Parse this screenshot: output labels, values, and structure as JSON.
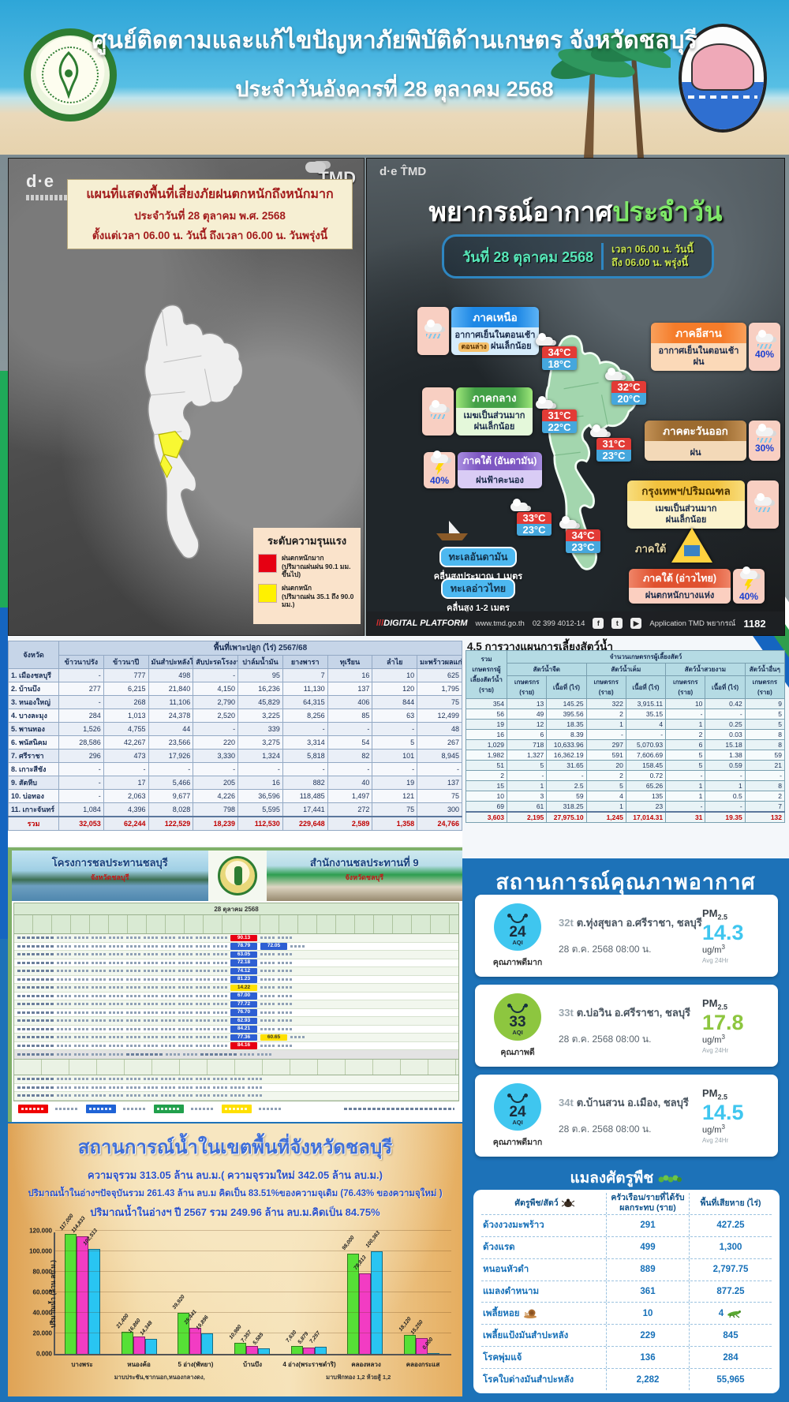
{
  "header": {
    "title_line1": "ศูนย์ติดตามและแก้ไขปัญหาภัยพิบัติด้านเกษตร จังหวัดชลบุรี",
    "title_line2": "ประจำวันอังคารที่ 28 ตุลาคม 2568"
  },
  "rain_map": {
    "box_line1": "แผนที่แสดงพื้นที่เสี่ยงภัยฝนตกหนักถึงหนักมาก",
    "box_line2": "ประจำวันที่ 28 ตุลาคม พ.ศ. 2568",
    "box_line3": "ตั้งแต่เวลา 06.00 น. วันนี้ ถึงเวลา 06.00 น. วันพรุ่งนี้",
    "tmd_logo": "TMD",
    "de_logo": "d·e",
    "legend_title": "ระดับความรุนแรง",
    "legend": [
      {
        "label": "ฝนตกหนักมาก",
        "detail": "(ปริมาณฝนฝน 90.1 มม. ขึ้นไป)",
        "color": "#e60012"
      },
      {
        "label": "ฝนตกหนัก",
        "detail": "(ปริมาณฝน 35.1 ถึง 90.0 มม.)",
        "color": "#fff100"
      }
    ]
  },
  "forecast": {
    "title_white": "พยากรณ์อากาศ",
    "title_green": "ประจำวัน",
    "date": "วันที่ 28 ตุลาคม 2568",
    "time_line1": "เวลา 06.00 น. วันนี้",
    "time_line2": "ถึง 06.00 น. พรุ่งนี้",
    "regions": {
      "north": {
        "name": "ภาคเหนือ",
        "line1": "อากาศเย็นในตอนเช้า",
        "badge": "ตอนล่าง",
        "line2": "ฝนเล็กน้อย"
      },
      "northeast": {
        "name": "ภาคอีสาน",
        "line1": "อากาศเย็นในตอนเช้า",
        "line2": "ฝน",
        "pct": "40%"
      },
      "central": {
        "name": "ภาคกลาง",
        "line1": "เมฆเป็นส่วนมาก",
        "line2": "ฝนเล็กน้อย"
      },
      "east": {
        "name": "ภาคตะวันออก",
        "line1": "ฝน",
        "pct": "30%"
      },
      "south_andaman": {
        "name": "ภาคใต้ (อันดามัน)",
        "line1": "ฝนฟ้าคะนอง",
        "pct": "40%"
      },
      "bangkok": {
        "name": "กรุงเทพฯ/ปริมณฑล",
        "line1": "เมฆเป็นส่วนมาก",
        "line2": "ฝนเล็กน้อย"
      },
      "south_gulf": {
        "name": "ภาคใต้ (อ่าวไทย)",
        "line1": "ฝนตกหนักบางแห่ง",
        "pct": "40%"
      },
      "south_label": "ภาคใต้"
    },
    "temps": [
      {
        "max": "34°C",
        "min": "18°C"
      },
      {
        "max": "32°C",
        "min": "20°C"
      },
      {
        "max": "31°C",
        "min": "22°C"
      },
      {
        "max": "31°C",
        "min": "23°C"
      },
      {
        "max": "33°C",
        "min": "23°C"
      },
      {
        "max": "34°C",
        "min": "23°C"
      }
    ],
    "seas": [
      {
        "name": "ทะเลอันดามัน",
        "wave": "คลื่นสูงประมาณ 1 เมตร"
      },
      {
        "name": "ทะเลอ่าวไทย",
        "wave": "คลื่นสูง 1-2 เมตร"
      }
    ],
    "footer": {
      "platform": "DIGITAL PLATFORM",
      "url": "www.tmd.go.th",
      "phone": "02 399 4012-14",
      "app": "Application TMD พยากรณ์",
      "hotline": "1182"
    }
  },
  "crop_table": {
    "group_header": "พื้นที่เพาะปลูก (ไร่) 2567/68",
    "province_header": "จังหวัด",
    "columns": [
      "ข้าวนาปรัง",
      "ข้าวนาปี",
      "มันสำปะหลังโรงงาน",
      "สับปะรดโรงงาน",
      "ปาล์มน้ำมัน",
      "ยางพารา",
      "ทุเรียน",
      "ลำไย",
      "มะพร้าวผลแก่"
    ],
    "rows": [
      {
        "name": "1. เมืองชลบุรี",
        "values": [
          "-",
          "777",
          "498",
          "-",
          "95",
          "7",
          "16",
          "10",
          "625"
        ]
      },
      {
        "name": "2. บ้านบึง",
        "values": [
          "277",
          "6,215",
          "21,840",
          "4,150",
          "16,236",
          "11,130",
          "137",
          "120",
          "1,795"
        ]
      },
      {
        "name": "3. หนองใหญ่",
        "values": [
          "-",
          "268",
          "11,106",
          "2,790",
          "45,829",
          "64,315",
          "406",
          "844",
          "75"
        ]
      },
      {
        "name": "4. บางละมุง",
        "values": [
          "284",
          "1,013",
          "24,378",
          "2,520",
          "3,225",
          "8,256",
          "85",
          "63",
          "12,499"
        ]
      },
      {
        "name": "5. พานทอง",
        "values": [
          "1,526",
          "4,755",
          "44",
          "-",
          "339",
          "-",
          "-",
          "-",
          "48"
        ]
      },
      {
        "name": "6. พนัสนิคม",
        "values": [
          "28,586",
          "42,267",
          "23,566",
          "220",
          "3,275",
          "3,314",
          "54",
          "5",
          "267"
        ]
      },
      {
        "name": "7. ศรีราชา",
        "values": [
          "296",
          "473",
          "17,926",
          "3,330",
          "1,324",
          "5,818",
          "82",
          "101",
          "8,945"
        ]
      },
      {
        "name": "8. เกาะสีชัง",
        "values": [
          "-",
          "-",
          "-",
          "-",
          "-",
          "-",
          "-",
          "-",
          "-"
        ]
      },
      {
        "name": "9. สัตหีบ",
        "values": [
          "-",
          "17",
          "5,466",
          "205",
          "16",
          "882",
          "40",
          "19",
          "137"
        ]
      },
      {
        "name": "10. บ่อทอง",
        "values": [
          "-",
          "2,063",
          "9,677",
          "4,226",
          "36,596",
          "118,485",
          "1,497",
          "121",
          "75"
        ]
      },
      {
        "name": "11. เกาะจันทร์",
        "values": [
          "1,084",
          "4,396",
          "8,028",
          "798",
          "5,595",
          "17,441",
          "272",
          "75",
          "300"
        ]
      }
    ],
    "total": {
      "name": "รวม",
      "values": [
        "32,053",
        "62,244",
        "122,529",
        "18,239",
        "112,530",
        "229,648",
        "2,589",
        "1,358",
        "24,766"
      ]
    }
  },
  "aqua_table": {
    "title": "4.5 การวางแผนการเลี้ยงสัตว์น้ำ",
    "first_col": "รวมเกษตรกรผู้เลี้ยงสัตว์น้ำ (ราย)",
    "span_header": "จำนวนเกษตรกรผู้เลี้ยงสัตว์",
    "groups": [
      {
        "name": "สัตว์น้ำจืด",
        "cols": [
          "เกษตรกร (ราย)",
          "เนื้อที่ (ไร่)"
        ]
      },
      {
        "name": "สัตว์น้ำเค็ม",
        "cols": [
          "เกษตรกร (ราย)",
          "เนื้อที่ (ไร่)"
        ]
      },
      {
        "name": "สัตว์น้ำสวยงาม",
        "cols": [
          "เกษตรกร (ราย)",
          "เนื้อที่ (ไร่)"
        ]
      },
      {
        "name": "สัตว์น้ำอื่นๆ",
        "cols": [
          "เกษตรกร (ราย)"
        ]
      }
    ],
    "rows": [
      [
        "354",
        "13",
        "145.25",
        "322",
        "3,915.11",
        "10",
        "0.42",
        "9"
      ],
      [
        "56",
        "49",
        "395.56",
        "2",
        "35.15",
        "-",
        "-",
        "5"
      ],
      [
        "19",
        "12",
        "18.35",
        "1",
        "4",
        "1",
        "0.25",
        "5"
      ],
      [
        "16",
        "6",
        "8.39",
        "-",
        "-",
        "2",
        "0.03",
        "8"
      ],
      [
        "1,029",
        "718",
        "10,633.96",
        "297",
        "5,070.93",
        "6",
        "15.18",
        "8"
      ],
      [
        "1,982",
        "1,327",
        "16,362.19",
        "591",
        "7,606.69",
        "5",
        "1.38",
        "59"
      ],
      [
        "51",
        "5",
        "31.65",
        "20",
        "158.45",
        "5",
        "0.59",
        "21"
      ],
      [
        "2",
        "-",
        "-",
        "2",
        "0.72",
        "-",
        "-",
        "-"
      ],
      [
        "15",
        "1",
        "2.5",
        "5",
        "65.26",
        "1",
        "1",
        "8"
      ],
      [
        "10",
        "3",
        "59",
        "4",
        "135",
        "1",
        "0.5",
        "2"
      ],
      [
        "69",
        "61",
        "318.25",
        "1",
        "23",
        "-",
        "-",
        "7"
      ]
    ],
    "total": [
      "3,603",
      "2,195",
      "27,975.10",
      "1,245",
      "17,014.31",
      "31",
      "19.35",
      "132"
    ]
  },
  "irrigation": {
    "left_title": "โครงการชลประทานชลบุรี",
    "left_sub": "จังหวัดชลบุรี",
    "right_title": "สำนักงานชลประทานที่ 9",
    "right_sub": "จังหวัดชลบุรี",
    "date": "28 ตุลาคม 2568",
    "level_colors": {
      "red": "#e80013",
      "blue": "#2e5fd3",
      "yellow": "#ffe000",
      "green": "#21a04c"
    },
    "rows": [
      {
        "pct": "90.13",
        "level": "red"
      },
      {
        "pct": "78.79",
        "level": "blue",
        "pct2": "72.05",
        "level2": "blue"
      },
      {
        "pct": "63.05",
        "level": "blue"
      },
      {
        "pct": "72.18",
        "level": "blue"
      },
      {
        "pct": "74.12",
        "level": "blue"
      },
      {
        "pct": "81.23",
        "level": "blue"
      },
      {
        "pct": "14.22",
        "level": "yellow"
      },
      {
        "pct": "67.00",
        "level": "blue"
      },
      {
        "pct": "77.72",
        "level": "blue"
      },
      {
        "pct": "76.70",
        "level": "blue"
      },
      {
        "pct": "62.93",
        "level": "blue"
      },
      {
        "pct": "84.21",
        "level": "blue"
      },
      {
        "pct": "77.36",
        "level": "blue",
        "pct2": "60.65",
        "level2": "yellow"
      },
      {
        "pct": "84.16",
        "level": "red"
      }
    ]
  },
  "air_quality": {
    "title": "สถานการณ์คุณภาพอากาศ",
    "stations": [
      {
        "code": "32t",
        "name": "ต.ทุ่งสุขลา อ.ศรีราชา, ชลบุรี",
        "datetime": "28 ต.ค. 2568 08:00 น.",
        "aqi": "24",
        "aqi_unit": "AQI",
        "quality": "คุณภาพดีมาก",
        "pm": "PM",
        "pm_sub": "2.5",
        "value": "14.3",
        "unit": "ug/m",
        "unit_sup": "3",
        "avg": "Avg 24Hr",
        "color": "#3fc6ef"
      },
      {
        "code": "33t",
        "name": "ต.บ่อวิน อ.ศรีราชา, ชลบุรี",
        "datetime": "28 ต.ค. 2568 08:00 น.",
        "aqi": "33",
        "aqi_unit": "AQI",
        "quality": "คุณภาพดี",
        "pm": "PM",
        "pm_sub": "2.5",
        "value": "17.8",
        "unit": "ug/m",
        "unit_sup": "3",
        "avg": "Avg 24Hr",
        "color": "#8dc63f"
      },
      {
        "code": "34t",
        "name": "ต.บ้านสวน อ.เมือง, ชลบุรี",
        "datetime": "28 ต.ค. 2568 08:00 น.",
        "aqi": "24",
        "aqi_unit": "AQI",
        "quality": "คุณภาพดีมาก",
        "pm": "PM",
        "pm_sub": "2.5",
        "value": "14.5",
        "unit": "ug/m",
        "unit_sup": "3",
        "avg": "Avg 24Hr",
        "color": "#3fc6ef"
      }
    ]
  },
  "water": {
    "title": "สถานการณ์น้ำในเขตพื้นที่จังหวัดชลบุรี",
    "line1": "ความจุรวม 313.05 ล้าน ลบ.ม.( ความจุรวมใหม่ 342.05 ล้าน ลบ.ม.)",
    "line2": "ปริมาณน้ำในอ่างฯปัจจุบันรวม 261.43 ล้าน ลบ.ม คิดเป็น 83.51%ของความจุเดิม (76.43% ของความจุใหม่ )",
    "line3": "ปริมาณน้ำในอ่างฯ ปี 2567 รวม 249.96 ล้าน ลบ.ม.คิดเป็น 84.75%"
  },
  "chart_data": {
    "type": "bar",
    "title": "สถานการณ์น้ำในเขตพื้นที่จังหวัดชลบุรี",
    "categories": [
      "บางพระ",
      "หนองค้อ",
      "5 อ่าง(พัทยา)",
      "บ้านบึง",
      "4 อ่าง(พระราชดำริ)",
      "คลองหลวง",
      "คลองกระแส"
    ],
    "series": [
      {
        "name": "series-green",
        "color": "#56e036",
        "values": [
          117000,
          21400,
          39920,
          10980,
          7630,
          98000,
          18120
        ],
        "labels": [
          "117,000",
          "21,400",
          "39,920",
          "10,980",
          "7,630",
          "98,000",
          "18,120"
        ]
      },
      {
        "name": "series-magenta",
        "color": "#f23cc3",
        "values": [
          114833,
          16860,
          25441,
          7357,
          5879,
          78813,
          15250
        ],
        "labels": [
          "114,833",
          "16,860",
          "25,441",
          "7,357",
          "5,879",
          "78,813",
          "15,250"
        ]
      },
      {
        "name": "series-cyan",
        "color": "#29c5f2",
        "values": [
          102513,
          14348,
          19896,
          5585,
          7257,
          100363,
          0
        ],
        "labels": [
          "102,513",
          "14,348",
          "19,896",
          "5,585",
          "7,257",
          "100,363",
          "0.000"
        ]
      }
    ],
    "ylabel": "ปริมาณน้ำ (ล้าน ลบ.ม.)",
    "yticks": [
      "0.000",
      "20.000",
      "40.000",
      "60.000",
      "80.000",
      "100.000",
      "120.000"
    ],
    "ylim": [
      0,
      120000
    ],
    "grid": true,
    "legend_position": "none",
    "footnotes": [
      "มาบประชัน,ชากนอก,หนองกลางดง,",
      "มาบฟักทอง 1,2 ห้วยสู้ 1,2"
    ]
  },
  "pests": {
    "title": "แมลงศัตรูพืช",
    "headers": [
      "ศัตรูพืช/สัตว์",
      "ครัวเรือน/รายที่ได้รับผลกระทบ (ราย)",
      "พื้นที่เสียหาย (ไร่)"
    ],
    "rows": [
      {
        "name": "ด้วงงวงมะพร้าว",
        "households": "291",
        "area": "427.25"
      },
      {
        "name": "ด้วงแรด",
        "households": "499",
        "area": "1,300"
      },
      {
        "name": "หนอนหัวดำ",
        "households": "889",
        "area": "2,797.75"
      },
      {
        "name": "แมลงดำหนาม",
        "households": "361",
        "area": "877.25"
      },
      {
        "name": "เพลี้ยหอย",
        "households": "10",
        "area": "4",
        "icon": "snail-icon",
        "icon2": "grasshopper-icon"
      },
      {
        "name": "เพลี้ยแป้งมันสำปะหลัง",
        "households": "229",
        "area": "845"
      },
      {
        "name": "โรคพุ่มแจ้",
        "households": "136",
        "area": "284"
      },
      {
        "name": "โรคใบด่างมันสำปะหลัง",
        "households": "2,282",
        "area": "55,965"
      }
    ]
  }
}
